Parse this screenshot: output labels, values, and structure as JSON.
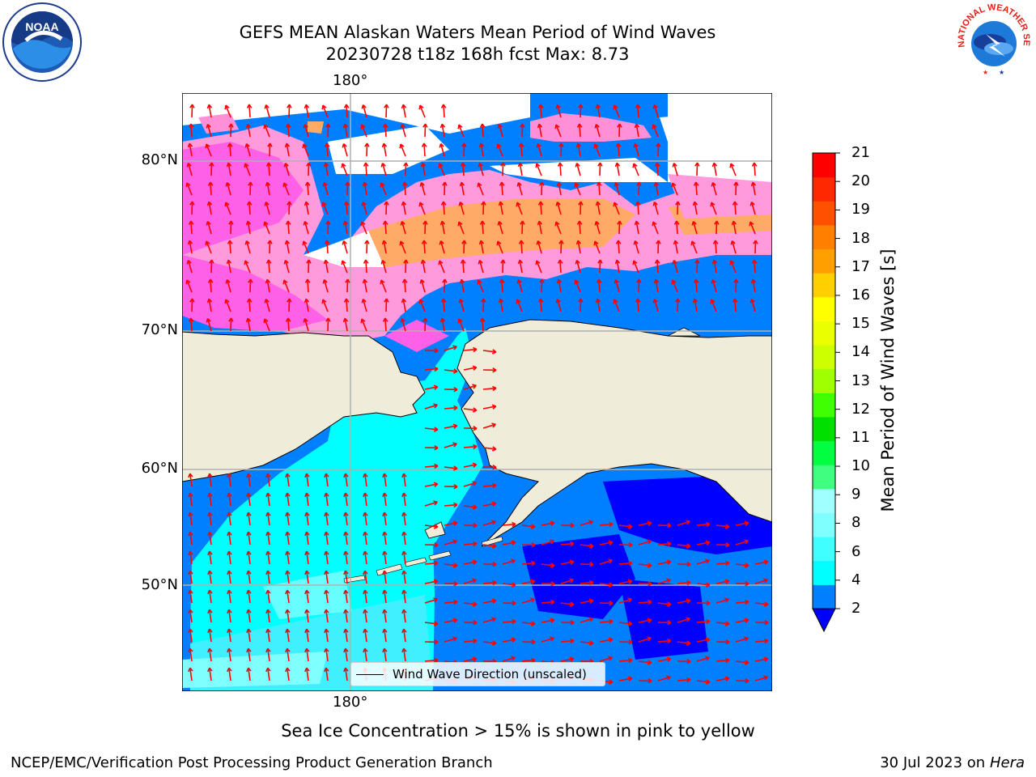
{
  "title": {
    "line1": "GEFS MEAN Alaskan Waters Mean Period of Wind Waves",
    "line2": "20230728 t18z 168h fcst   Max: 8.73"
  },
  "map": {
    "lon_labels": [
      "180°",
      "180°"
    ],
    "lat_labels": [
      "80°N",
      "70°N",
      "60°N",
      "50°N"
    ],
    "legend_label": "Wind Wave Direction (unscaled)",
    "colors": {
      "land": "#efedd9",
      "deep_blue": "#0000ff",
      "mid_blue": "#0080ff",
      "cyan": "#00ffff",
      "light_cyan": "#66ffff",
      "pink": "#ff40ff",
      "ice_pink": "#ff88d8",
      "ice_orange": "#ffaa66",
      "arrow": "#ff0000"
    }
  },
  "colorbar": {
    "title": "Mean Period of Wind Waves [s]",
    "ticks": [
      "2",
      "4",
      "6",
      "8",
      "9",
      "10",
      "11",
      "12",
      "13",
      "14",
      "15",
      "16",
      "17",
      "18",
      "19",
      "20",
      "21"
    ],
    "colors": [
      "#0080ff",
      "#00ffff",
      "#40ffff",
      "#80ffff",
      "#a0ffff",
      "#40ff80",
      "#00ff40",
      "#00e000",
      "#40ff00",
      "#a0ff00",
      "#ccff00",
      "#eaff00",
      "#ffff00",
      "#ffd000",
      "#ffa000",
      "#ff8000",
      "#ff5000",
      "#ff2800",
      "#ff0000"
    ],
    "extend_color": "#0000ff"
  },
  "caption": "Sea Ice Concentration > 15% is shown in pink to yellow",
  "footer": {
    "left": "NCEP/EMC/Verification Post Processing Product Generation Branch",
    "right_prefix": "30 Jul 2023 on ",
    "right_machine": "Hera"
  },
  "logos": {
    "left": "NOAA",
    "right": "NATIONAL WEATHER SERVICE"
  }
}
